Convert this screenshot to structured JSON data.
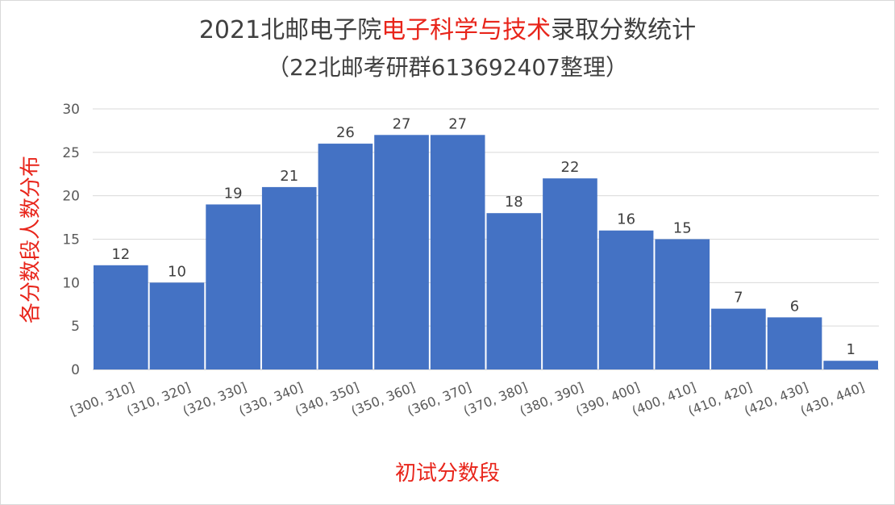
{
  "header": {
    "title_prefix": "2021北邮电子院",
    "title_highlight": "电子科学与技术",
    "title_suffix": "录取分数统计",
    "subtitle": "（22北邮考研群613692407整理）"
  },
  "colors": {
    "bar": "#4472c4",
    "highlight": "#e8251b",
    "grid": "#d9d9d9"
  },
  "chart_data": {
    "type": "bar",
    "title": "2021北邮电子院电子科学与技术录取分数统计",
    "subtitle": "（22北邮考研群613692407整理）",
    "xlabel": "初试分数段",
    "ylabel": "各分数段人数分布",
    "categories": [
      "[300, 310]",
      "(310, 320]",
      "(320, 330]",
      "(330, 340]",
      "(340, 350]",
      "(350, 360]",
      "(360, 370]",
      "(370, 380]",
      "(380, 390]",
      "(390, 400]",
      "(400, 410]",
      "(410, 420]",
      "(420, 430]",
      "(430, 440]"
    ],
    "values": [
      12,
      10,
      19,
      21,
      26,
      27,
      27,
      18,
      22,
      16,
      15,
      7,
      6,
      1
    ],
    "ylim": [
      0,
      30
    ],
    "yticks": [
      0,
      5,
      10,
      15,
      20,
      25,
      30
    ],
    "grid": true,
    "data_labels": true,
    "legend": "none"
  }
}
